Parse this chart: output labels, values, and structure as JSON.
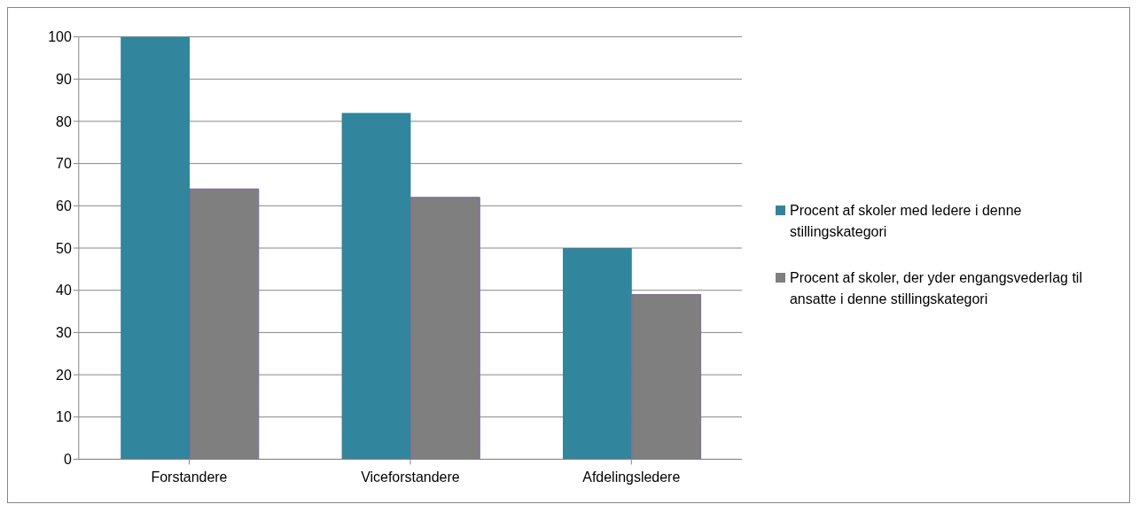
{
  "chart_data": {
    "type": "bar",
    "categories": [
      "Forstandere",
      "Viceforstandere",
      "Afdelingsledere"
    ],
    "series": [
      {
        "name": "Procent af skoler med ledere i denne stillingskategori",
        "color": "#31859c",
        "values": [
          100,
          82,
          50
        ]
      },
      {
        "name": "Procent af skoler, der yder engangsvederlag til ansatte i denne stillingskategori",
        "color": "#7f7f7f",
        "values": [
          64,
          62,
          39
        ]
      }
    ],
    "ylim": [
      0,
      100
    ],
    "yticks": [
      0,
      10,
      20,
      30,
      40,
      50,
      60,
      70,
      80,
      90,
      100
    ],
    "grid": "y",
    "legend": "right"
  }
}
